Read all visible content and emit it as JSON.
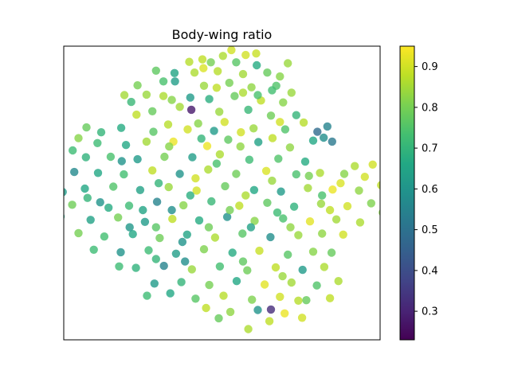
{
  "chart_data": {
    "type": "scatter",
    "title": "Body-wing ratio",
    "xlabel": "",
    "ylabel": "",
    "x_ticks_visible": false,
    "y_ticks_visible": false,
    "xlim": [
      -3.0,
      3.0
    ],
    "ylim": [
      -3.0,
      3.0
    ],
    "grid": false,
    "colormap": "viridis",
    "colorbar": {
      "range": [
        0.23,
        0.95
      ],
      "ticks": [
        0.3,
        0.4,
        0.5,
        0.6,
        0.7,
        0.8,
        0.9
      ],
      "tick_labels": [
        "0.3",
        "0.4",
        "0.5",
        "0.6",
        "0.7",
        "0.8",
        "0.9"
      ]
    },
    "point_alpha": 0.8,
    "points": [
      [
        -0.37,
        2.73,
        0.88
      ],
      [
        -0.21,
        2.67,
        0.8
      ],
      [
        0.27,
        2.67,
        0.76
      ],
      [
        0.66,
        2.61,
        0.67
      ],
      [
        -0.52,
        2.46,
        0.86
      ],
      [
        -0.08,
        2.49,
        0.87
      ],
      [
        0.4,
        2.43,
        0.85
      ],
      [
        0.86,
        2.46,
        0.78
      ],
      [
        -1.11,
        2.28,
        0.74
      ],
      [
        -0.89,
        2.28,
        0.63
      ],
      [
        -0.34,
        2.19,
        0.84
      ],
      [
        0.14,
        2.25,
        0.8
      ],
      [
        0.56,
        2.16,
        0.83
      ],
      [
        1.03,
        2.19,
        0.75
      ],
      [
        -1.43,
        2.01,
        0.84
      ],
      [
        -1.11,
        1.98,
        0.86
      ],
      [
        -0.6,
        1.95,
        0.62
      ],
      [
        -0.24,
        1.92,
        0.68
      ],
      [
        0.24,
        1.98,
        0.78
      ],
      [
        0.74,
        1.89,
        0.88
      ],
      [
        1.16,
        1.85,
        0.82
      ],
      [
        -1.32,
        1.67,
        0.78
      ],
      [
        -0.58,
        1.7,
        0.28
      ],
      [
        -0.05,
        1.66,
        0.84
      ],
      [
        0.5,
        1.7,
        0.71
      ],
      [
        0.93,
        1.58,
        0.79
      ],
      [
        1.55,
        1.44,
        0.87
      ],
      [
        1.81,
        1.25,
        0.48
      ],
      [
        1.93,
        1.13,
        0.58
      ],
      [
        1.73,
        1.07,
        0.66
      ],
      [
        -1.02,
        1.4,
        0.87
      ],
      [
        -0.45,
        1.42,
        0.82
      ],
      [
        0.05,
        1.45,
        0.9
      ],
      [
        0.6,
        1.32,
        0.84
      ],
      [
        1.2,
        1.3,
        0.75
      ],
      [
        -2.57,
        1.34,
        0.78
      ],
      [
        -2.29,
        1.24,
        0.7
      ],
      [
        -1.91,
        1.33,
        0.67
      ],
      [
        -2.36,
        1.02,
        0.72
      ],
      [
        -1.82,
        0.98,
        0.66
      ],
      [
        -1.43,
        1.05,
        0.85
      ],
      [
        -0.92,
        1.05,
        0.93
      ],
      [
        -0.39,
        1.11,
        0.7
      ],
      [
        0.12,
        1.09,
        0.77
      ],
      [
        0.69,
        1.04,
        0.64
      ],
      [
        1.29,
        0.93,
        0.83
      ],
      [
        -2.58,
        0.73,
        0.69
      ],
      [
        -2.11,
        0.74,
        0.74
      ],
      [
        -1.6,
        0.69,
        0.62
      ],
      [
        -1.09,
        0.74,
        0.8
      ],
      [
        -0.56,
        0.73,
        0.63
      ],
      [
        -0.04,
        0.79,
        0.86
      ],
      [
        0.52,
        0.68,
        0.72
      ],
      [
        1.07,
        0.7,
        0.75
      ],
      [
        -2.8,
        0.43,
        0.57
      ],
      [
        -2.35,
        0.41,
        0.66
      ],
      [
        -1.86,
        0.38,
        0.73
      ],
      [
        -1.32,
        0.46,
        0.88
      ],
      [
        -0.8,
        0.39,
        0.6
      ],
      [
        -0.26,
        0.48,
        0.86
      ],
      [
        0.27,
        0.39,
        0.79
      ],
      [
        0.84,
        0.45,
        0.91
      ],
      [
        1.41,
        0.38,
        0.74
      ],
      [
        1.86,
        0.41,
        0.86
      ],
      [
        2.32,
        0.39,
        0.82
      ],
      [
        2.71,
        0.33,
        0.9
      ],
      [
        -2.6,
        0.09,
        0.66
      ],
      [
        -2.06,
        0.13,
        0.75
      ],
      [
        -1.55,
        0.06,
        0.64
      ],
      [
        -1.01,
        0.12,
        0.84
      ],
      [
        -0.48,
        0.05,
        0.9
      ],
      [
        0.06,
        0.14,
        0.78
      ],
      [
        0.61,
        0.06,
        0.66
      ],
      [
        1.12,
        0.03,
        0.62
      ],
      [
        1.63,
        0.1,
        0.85
      ],
      [
        2.1,
        0.07,
        0.93
      ],
      [
        2.6,
        0.05,
        0.83
      ],
      [
        -2.84,
        -0.24,
        0.79
      ],
      [
        -2.31,
        -0.19,
        0.6
      ],
      [
        -1.76,
        -0.26,
        0.72
      ],
      [
        -1.23,
        -0.18,
        0.55
      ],
      [
        -0.73,
        -0.25,
        0.82
      ],
      [
        -0.2,
        -0.17,
        0.71
      ],
      [
        0.33,
        -0.26,
        0.88
      ],
      [
        0.86,
        -0.2,
        0.77
      ],
      [
        1.37,
        -0.28,
        0.69
      ],
      [
        1.88,
        -0.22,
        0.84
      ],
      [
        2.38,
        -0.27,
        0.9
      ],
      [
        2.83,
        -0.21,
        0.81
      ],
      [
        -2.49,
        -0.55,
        0.64
      ],
      [
        -1.97,
        -0.5,
        0.8
      ],
      [
        -1.46,
        -0.59,
        0.62
      ],
      [
        -0.94,
        -0.53,
        0.88
      ],
      [
        -0.43,
        -0.56,
        0.67
      ],
      [
        0.1,
        -0.49,
        0.59
      ],
      [
        0.62,
        -0.57,
        0.82
      ],
      [
        1.16,
        -0.52,
        0.74
      ],
      [
        1.67,
        -0.58,
        0.92
      ],
      [
        2.17,
        -0.54,
        0.85
      ],
      [
        -2.23,
        -0.89,
        0.73
      ],
      [
        -1.69,
        -0.84,
        0.66
      ],
      [
        -1.18,
        -0.92,
        0.79
      ],
      [
        -0.66,
        -0.85,
        0.65
      ],
      [
        -0.13,
        -0.91,
        0.86
      ],
      [
        0.39,
        -0.83,
        0.76
      ],
      [
        0.92,
        -0.9,
        0.58
      ],
      [
        1.45,
        -0.86,
        0.84
      ],
      [
        1.9,
        -0.83,
        0.83
      ],
      [
        -1.92,
        -1.21,
        0.6
      ],
      [
        -1.39,
        -1.17,
        0.72
      ],
      [
        -0.87,
        -1.24,
        0.63
      ],
      [
        -0.34,
        -1.15,
        0.81
      ],
      [
        0.2,
        -1.22,
        0.67
      ],
      [
        0.71,
        -1.18,
        0.89
      ],
      [
        1.25,
        -1.26,
        0.76
      ],
      [
        1.73,
        -1.2,
        0.82
      ],
      [
        -1.63,
        -1.53,
        0.69
      ],
      [
        -1.1,
        -1.49,
        0.55
      ],
      [
        -0.57,
        -1.56,
        0.84
      ],
      [
        -0.04,
        -1.5,
        0.73
      ],
      [
        0.48,
        -1.58,
        0.79
      ],
      [
        1.02,
        -1.52,
        0.88
      ],
      [
        1.53,
        -1.57,
        0.62
      ],
      [
        1.94,
        -1.51,
        0.86
      ],
      [
        -1.28,
        -1.85,
        0.62
      ],
      [
        -0.77,
        -1.82,
        0.7
      ],
      [
        -0.24,
        -1.88,
        0.8
      ],
      [
        0.28,
        -1.8,
        0.66
      ],
      [
        0.81,
        -1.87,
        0.92
      ],
      [
        1.32,
        -1.83,
        0.85
      ],
      [
        1.8,
        -1.89,
        0.75
      ],
      [
        -0.5,
        -2.16,
        0.76
      ],
      [
        0.03,
        -2.1,
        0.87
      ],
      [
        0.57,
        -2.18,
        0.81
      ],
      [
        1.1,
        -2.12,
        0.9
      ],
      [
        1.6,
        -2.19,
        0.78
      ],
      [
        0.16,
        -2.43,
        0.83
      ],
      [
        0.68,
        -2.39,
        0.6
      ],
      [
        1.19,
        -2.46,
        0.93
      ],
      [
        0.9,
        -2.62,
        0.88
      ],
      [
        -0.62,
        2.68,
        0.87
      ],
      [
        0.02,
        2.8,
        0.86
      ],
      [
        0.45,
        2.82,
        0.9
      ],
      [
        0.18,
        2.92,
        0.9
      ],
      [
        -0.9,
        2.45,
        0.65
      ],
      [
        1.1,
        2.38,
        0.82
      ],
      [
        1.32,
        2.05,
        0.84
      ],
      [
        -1.6,
        2.2,
        0.8
      ],
      [
        -1.72,
        1.86,
        0.71
      ],
      [
        -0.8,
        1.76,
        0.85
      ],
      [
        1.41,
        1.59,
        0.7
      ],
      [
        2.0,
        1.36,
        0.55
      ],
      [
        2.09,
        1.05,
        0.52
      ],
      [
        -2.72,
        1.12,
        0.82
      ],
      [
        -1.62,
        1.6,
        0.88
      ],
      [
        0.36,
        1.24,
        0.9
      ],
      [
        1.58,
        0.64,
        0.67
      ],
      [
        -2.83,
        0.87,
        0.72
      ],
      [
        2.52,
        0.55,
        0.86
      ],
      [
        2.86,
        0.58,
        0.9
      ],
      [
        3.02,
        0.16,
        0.88
      ],
      [
        3.05,
        -0.4,
        0.82
      ],
      [
        2.62,
        -0.6,
        0.86
      ],
      [
        -3.02,
        0.02,
        0.62
      ],
      [
        -3.06,
        -0.48,
        0.66
      ],
      [
        -2.72,
        -0.82,
        0.8
      ],
      [
        -2.43,
        -1.16,
        0.72
      ],
      [
        2.3,
        -0.85,
        0.9
      ],
      [
        2.08,
        -1.22,
        0.78
      ],
      [
        2.21,
        -1.8,
        0.86
      ],
      [
        2.05,
        -2.15,
        0.88
      ],
      [
        1.52,
        -2.55,
        0.9
      ],
      [
        0.5,
        -2.78,
        0.86
      ],
      [
        0.93,
        -2.38,
        0.32
      ],
      [
        -0.98,
        -2.05,
        0.66
      ],
      [
        -1.42,
        -2.1,
        0.72
      ],
      [
        -0.06,
        -2.56,
        0.78
      ],
      [
        -0.28,
        0.96,
        0.93
      ],
      [
        0.96,
        1.12,
        0.88
      ],
      [
        0.68,
        2.0,
        0.74
      ],
      [
        -0.15,
        1.27,
        0.62
      ],
      [
        -1.2,
        0.2,
        0.7
      ],
      [
        -0.6,
        -0.05,
        0.68
      ],
      [
        0.45,
        -0.05,
        0.86
      ],
      [
        1.9,
        -0.05,
        0.74
      ],
      [
        -1.5,
        -0.35,
        0.65
      ],
      [
        -0.95,
        -0.35,
        0.58
      ],
      [
        0.15,
        -0.35,
        0.8
      ],
      [
        1.05,
        -0.4,
        0.72
      ],
      [
        2.05,
        -0.35,
        0.88
      ],
      [
        -2.15,
        -0.3,
        0.67
      ],
      [
        -1.75,
        -0.7,
        0.61
      ],
      [
        -1.25,
        -0.7,
        0.76
      ],
      [
        -0.75,
        -1.0,
        0.6
      ],
      [
        -0.25,
        -0.7,
        0.79
      ],
      [
        0.55,
        -0.7,
        0.64
      ],
      [
        1.3,
        -0.7,
        0.83
      ],
      [
        -1.25,
        -1.35,
        0.7
      ],
      [
        -0.7,
        -1.4,
        0.58
      ],
      [
        0.4,
        -1.4,
        0.77
      ],
      [
        1.15,
        -1.7,
        0.84
      ],
      [
        1.45,
        -2.2,
        0.87
      ],
      [
        -1.95,
        -1.5,
        0.72
      ],
      [
        -0.3,
        -2.35,
        0.88
      ],
      [
        -1.0,
        0.95,
        0.82
      ],
      [
        -1.9,
        0.65,
        0.6
      ],
      [
        -2.55,
        -0.1,
        0.7
      ],
      [
        -0.5,
        0.3,
        0.9
      ],
      [
        0.95,
        0.25,
        0.84
      ],
      [
        1.65,
        0.35,
        0.8
      ],
      [
        2.25,
        0.2,
        0.91
      ],
      [
        -0.1,
        0.6,
        0.74
      ],
      [
        0.35,
        0.95,
        0.83
      ],
      [
        -0.65,
        1.3,
        0.9
      ],
      [
        -1.3,
        1.25,
        0.76
      ],
      [
        -0.95,
        1.9,
        0.82
      ],
      [
        -0.1,
        2.15,
        0.88
      ],
      [
        0.4,
        2.05,
        0.86
      ],
      [
        0.95,
        2.1,
        0.73
      ],
      [
        -0.35,
        2.55,
        0.91
      ],
      [
        0.65,
        2.85,
        0.89
      ],
      [
        -1.25,
        2.5,
        0.77
      ],
      [
        1.25,
        2.65,
        0.84
      ],
      [
        -1.85,
        2.0,
        0.85
      ],
      [
        1.1,
        1.45,
        0.9
      ]
    ]
  }
}
